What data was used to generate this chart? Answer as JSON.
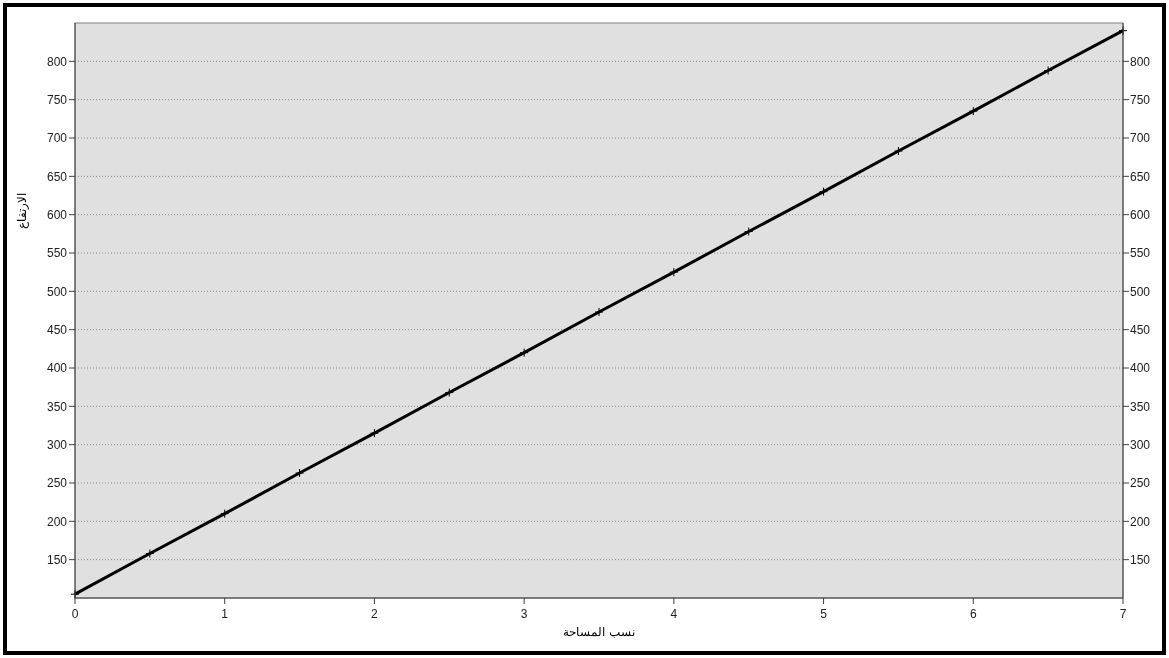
{
  "chart_data": {
    "type": "line",
    "xlabel": "نسب المساحة",
    "ylabel": "الارتفاع",
    "x": [
      0,
      0.5,
      1,
      1.5,
      2,
      2.5,
      3,
      3.5,
      4,
      4.5,
      5,
      5.5,
      6,
      6.5,
      7
    ],
    "series": [
      {
        "color": "#000000",
        "values": [
          105,
          158,
          210,
          263,
          315,
          368,
          420,
          473,
          525,
          578,
          630,
          683,
          735,
          788,
          840
        ]
      }
    ],
    "xlim": [
      0,
      7
    ],
    "xticks": [
      0,
      1,
      2,
      3,
      4,
      5,
      6,
      7
    ],
    "ylim": [
      100,
      850
    ],
    "yticks": [
      150,
      200,
      250,
      300,
      350,
      400,
      450,
      500,
      550,
      600,
      650,
      700,
      750,
      800
    ],
    "y2lim": [
      100,
      850
    ],
    "y2ticks": [
      150,
      200,
      250,
      300,
      350,
      400,
      450,
      500,
      550,
      600,
      650,
      700,
      750,
      800
    ],
    "grid": "y",
    "marker": "cross",
    "line_style": "solid"
  }
}
